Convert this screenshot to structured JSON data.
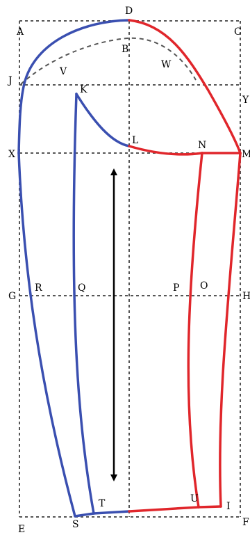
{
  "colors": {
    "blue_piece": "#3a4fb0",
    "red_piece": "#e0262b",
    "guide": "#555555",
    "arrow": "#000000"
  },
  "points": {
    "A": "A",
    "B": "B",
    "C": "C",
    "D": "D",
    "E": "E",
    "F": "F",
    "G": "G",
    "H": "H",
    "I": "I",
    "J": "J",
    "K": "K",
    "L": "L",
    "M": "M",
    "N": "N",
    "O": "O",
    "P": "P",
    "Q": "Q",
    "R": "R",
    "S": "S",
    "T": "T",
    "U": "U",
    "V": "V",
    "W": "W",
    "X": "X",
    "Y": "Y"
  },
  "grain_line": {
    "arrowheads": "both"
  }
}
